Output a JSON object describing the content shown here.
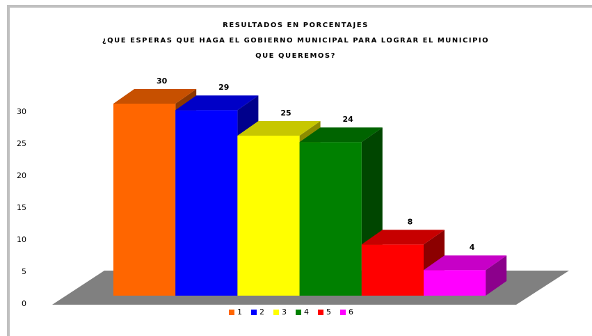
{
  "chart_data": {
    "type": "bar3d",
    "title": [
      "RESULTADOS EN PORCENTAJES",
      "¿QUE ESPERAS QUE HAGA EL GOBIERNO MUNICIPAL PARA LOGRAR EL MUNICIPIO",
      "QUE QUEREMOS?"
    ],
    "categories": [
      "1",
      "2",
      "3",
      "4",
      "5",
      "6"
    ],
    "values": [
      30,
      29,
      25,
      24,
      8,
      4
    ],
    "colors": [
      "#ff6600",
      "#0000ff",
      "#ffff00",
      "#008000",
      "#ff0000",
      "#ff00ff"
    ],
    "ylim": [
      0,
      30
    ],
    "yticks": [
      0,
      5,
      10,
      15,
      20,
      25,
      30
    ],
    "legend": "bottom"
  }
}
